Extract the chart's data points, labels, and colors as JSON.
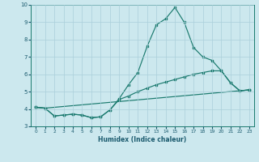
{
  "xlabel": "Humidex (Indice chaleur)",
  "xlim": [
    -0.5,
    23.5
  ],
  "ylim": [
    3,
    10
  ],
  "yticks": [
    3,
    4,
    5,
    6,
    7,
    8,
    9,
    10
  ],
  "xticks": [
    0,
    1,
    2,
    3,
    4,
    5,
    6,
    7,
    8,
    9,
    10,
    11,
    12,
    13,
    14,
    15,
    16,
    17,
    18,
    19,
    20,
    21,
    22,
    23
  ],
  "bg_color": "#cce8ee",
  "line_color": "#1a7a6e",
  "grid_color": "#aacfda",
  "line1_x": [
    0,
    1,
    2,
    3,
    4,
    5,
    6,
    7,
    8,
    9,
    10,
    11,
    12,
    13,
    14,
    15,
    16,
    17,
    18,
    19,
    20,
    21,
    22,
    23
  ],
  "line1_y": [
    4.1,
    4.05,
    3.6,
    3.65,
    3.7,
    3.65,
    3.5,
    3.55,
    3.95,
    4.6,
    5.4,
    6.1,
    7.6,
    8.85,
    9.2,
    9.85,
    9.0,
    7.55,
    7.0,
    6.8,
    6.2,
    5.5,
    5.05,
    5.1
  ],
  "line2_x": [
    0,
    1,
    2,
    3,
    4,
    5,
    6,
    7,
    8,
    9,
    10,
    11,
    12,
    13,
    14,
    15,
    16,
    17,
    18,
    19,
    20,
    21,
    22,
    23
  ],
  "line2_y": [
    4.1,
    4.05,
    3.6,
    3.65,
    3.7,
    3.65,
    3.5,
    3.55,
    3.95,
    4.55,
    4.75,
    5.0,
    5.2,
    5.4,
    5.55,
    5.7,
    5.85,
    6.0,
    6.1,
    6.2,
    6.2,
    5.5,
    5.05,
    5.1
  ],
  "line3_x": [
    0,
    1,
    23
  ],
  "line3_y": [
    4.1,
    4.05,
    5.1
  ]
}
